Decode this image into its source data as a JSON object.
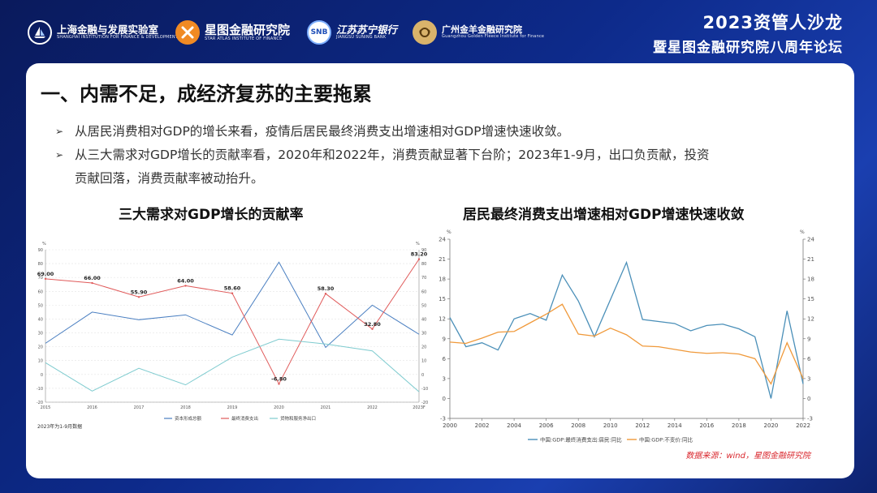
{
  "header": {
    "logos": [
      {
        "name": "上海金融与发展实验室",
        "en": "SHANGHAI INSTITUTION FOR FINANCE & DEVELOPMENT",
        "icon": "sailboat-logo-icon",
        "color": "#ffffff"
      },
      {
        "name": "星图金融研究院",
        "en": "STAR ATLAS INSTITUTE OF FINANCE",
        "icon": "x-star-logo-icon",
        "color": "#f08a24"
      },
      {
        "name": "江苏苏宁银行",
        "en": "JIANGSU SUNING BANK",
        "icon": "snb-logo-icon",
        "mark": "SNB",
        "color": "#1f4fb8"
      },
      {
        "name": "广州金羊金融研究院",
        "en": "Guangzhou Golden Fleece Institute for Finance",
        "icon": "ram-logo-icon",
        "color": "#d9b36b"
      }
    ],
    "forum_line1": "2023资管人沙龙",
    "forum_line2": "暨星图金融研究院八周年论坛"
  },
  "slide": {
    "title": "一、内需不足，成经济复苏的主要拖累",
    "bullet_marker": "➢",
    "bullet1": "从居民消费相对GDP的增长来看，疫情后居民最终消费支出增速相对GDP增速快速收敛。",
    "bullet2_line1": "从三大需求对GDP增长的贡献率看，2020年和2022年，消费贡献显著下台阶；2023年1-9月，出口负贡献，投资",
    "bullet2_line2": "贡献回落，消费贡献率被动抬升。",
    "source": "数据来源：wind，星图金融研究院"
  },
  "chart_data": [
    {
      "type": "line",
      "title": "三大需求对GDP增长的贡献率",
      "x": [
        "2015",
        "2016",
        "2017",
        "2018",
        "2019",
        "2020",
        "2021",
        "2022",
        "2023F"
      ],
      "ylim": [
        -20,
        90
      ],
      "yticks": [
        -20,
        -10,
        0,
        10,
        20,
        30,
        40,
        50,
        60,
        70,
        80,
        90
      ],
      "unit_left": "%",
      "unit_right": "%",
      "series": [
        {
          "name": "资本形成总额",
          "color": "#4a7fc1",
          "values": [
            22.5,
            45.0,
            39.5,
            43.0,
            28.5,
            81.0,
            19.5,
            50.0,
            29.0
          ]
        },
        {
          "name": "最终消费支出",
          "color": "#e05a5a",
          "values": [
            69.0,
            66.0,
            55.9,
            64.0,
            58.6,
            -6.8,
            58.3,
            32.8,
            83.2
          ],
          "labels": [
            "69.00",
            "66.00",
            "55.90",
            "64.00",
            "58.60",
            "-6.80",
            "58.30",
            "32.80",
            "83.20"
          ]
        },
        {
          "name": "货物和服务净出口",
          "color": "#7ecbcf",
          "values": [
            8.5,
            -12.0,
            4.5,
            -7.5,
            12.5,
            25.5,
            22.0,
            17.0,
            -12.5
          ]
        }
      ],
      "footnote": "2023年为1-9月数据",
      "grid": true,
      "legend": "bottom"
    },
    {
      "type": "line",
      "title": "居民最终消费支出增速相对GDP增速快速收敛",
      "x": [
        2000,
        2001,
        2002,
        2003,
        2004,
        2005,
        2006,
        2007,
        2008,
        2009,
        2010,
        2011,
        2012,
        2013,
        2014,
        2015,
        2016,
        2017,
        2018,
        2019,
        2020,
        2021,
        2022
      ],
      "xticks": [
        2000,
        2002,
        2004,
        2006,
        2008,
        2010,
        2012,
        2014,
        2016,
        2018,
        2020,
        2022
      ],
      "ylim": [
        -3,
        24
      ],
      "yticks": [
        -3,
        0,
        3,
        6,
        9,
        12,
        15,
        18,
        21,
        24
      ],
      "unit_left": "%",
      "unit_right": "%",
      "series": [
        {
          "name": "中国:GDP:最终消费支出:居民:同比",
          "color": "#4a8fb8",
          "values": [
            12.2,
            7.8,
            8.4,
            7.3,
            12.0,
            12.8,
            11.8,
            18.6,
            14.7,
            9.3,
            14.9,
            20.5,
            11.9,
            11.6,
            11.3,
            10.2,
            11.0,
            11.2,
            10.5,
            9.3,
            0.0,
            13.2,
            2.2
          ]
        },
        {
          "name": "中国:GDP:不变价:同比",
          "color": "#f0993a",
          "values": [
            8.5,
            8.3,
            9.1,
            10.0,
            10.1,
            11.4,
            12.7,
            14.2,
            9.7,
            9.4,
            10.6,
            9.6,
            7.9,
            7.8,
            7.4,
            7.0,
            6.8,
            6.9,
            6.7,
            6.0,
            2.2,
            8.4,
            3.0
          ]
        }
      ],
      "grid": false,
      "legend": "bottom"
    }
  ]
}
